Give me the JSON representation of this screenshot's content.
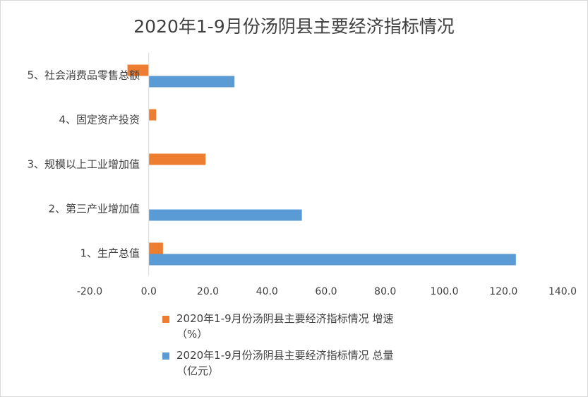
{
  "chart_data": {
    "type": "bar",
    "orientation": "horizontal",
    "title": "2020年1-9月份汤阴县主要经济指标情况",
    "categories": [
      "1、生产总值",
      "2、第三产业增加值",
      "3、规模以上工业增加值",
      "4、固定资产投资",
      "5、社会消费品零售总额"
    ],
    "series": [
      {
        "name": "2020年1-9月份汤阴县主要经济指标情况 增速\n（%）",
        "color": "#ED7D31",
        "values": [
          4.8,
          null,
          19.2,
          2.5,
          -7.2
        ]
      },
      {
        "name": "2020年1-9月份汤阴县主要经济指标情况 总量\n（亿元）",
        "color": "#5B9BD5",
        "values": [
          124.2,
          51.8,
          null,
          null,
          29.0
        ]
      }
    ],
    "xlim": [
      -20,
      140
    ],
    "xticks": [
      "-20.0",
      "0.0",
      "20.0",
      "40.0",
      "60.0",
      "80.0",
      "100.0",
      "120.0",
      "140.0"
    ],
    "grid": false,
    "legend_position": "bottom"
  }
}
